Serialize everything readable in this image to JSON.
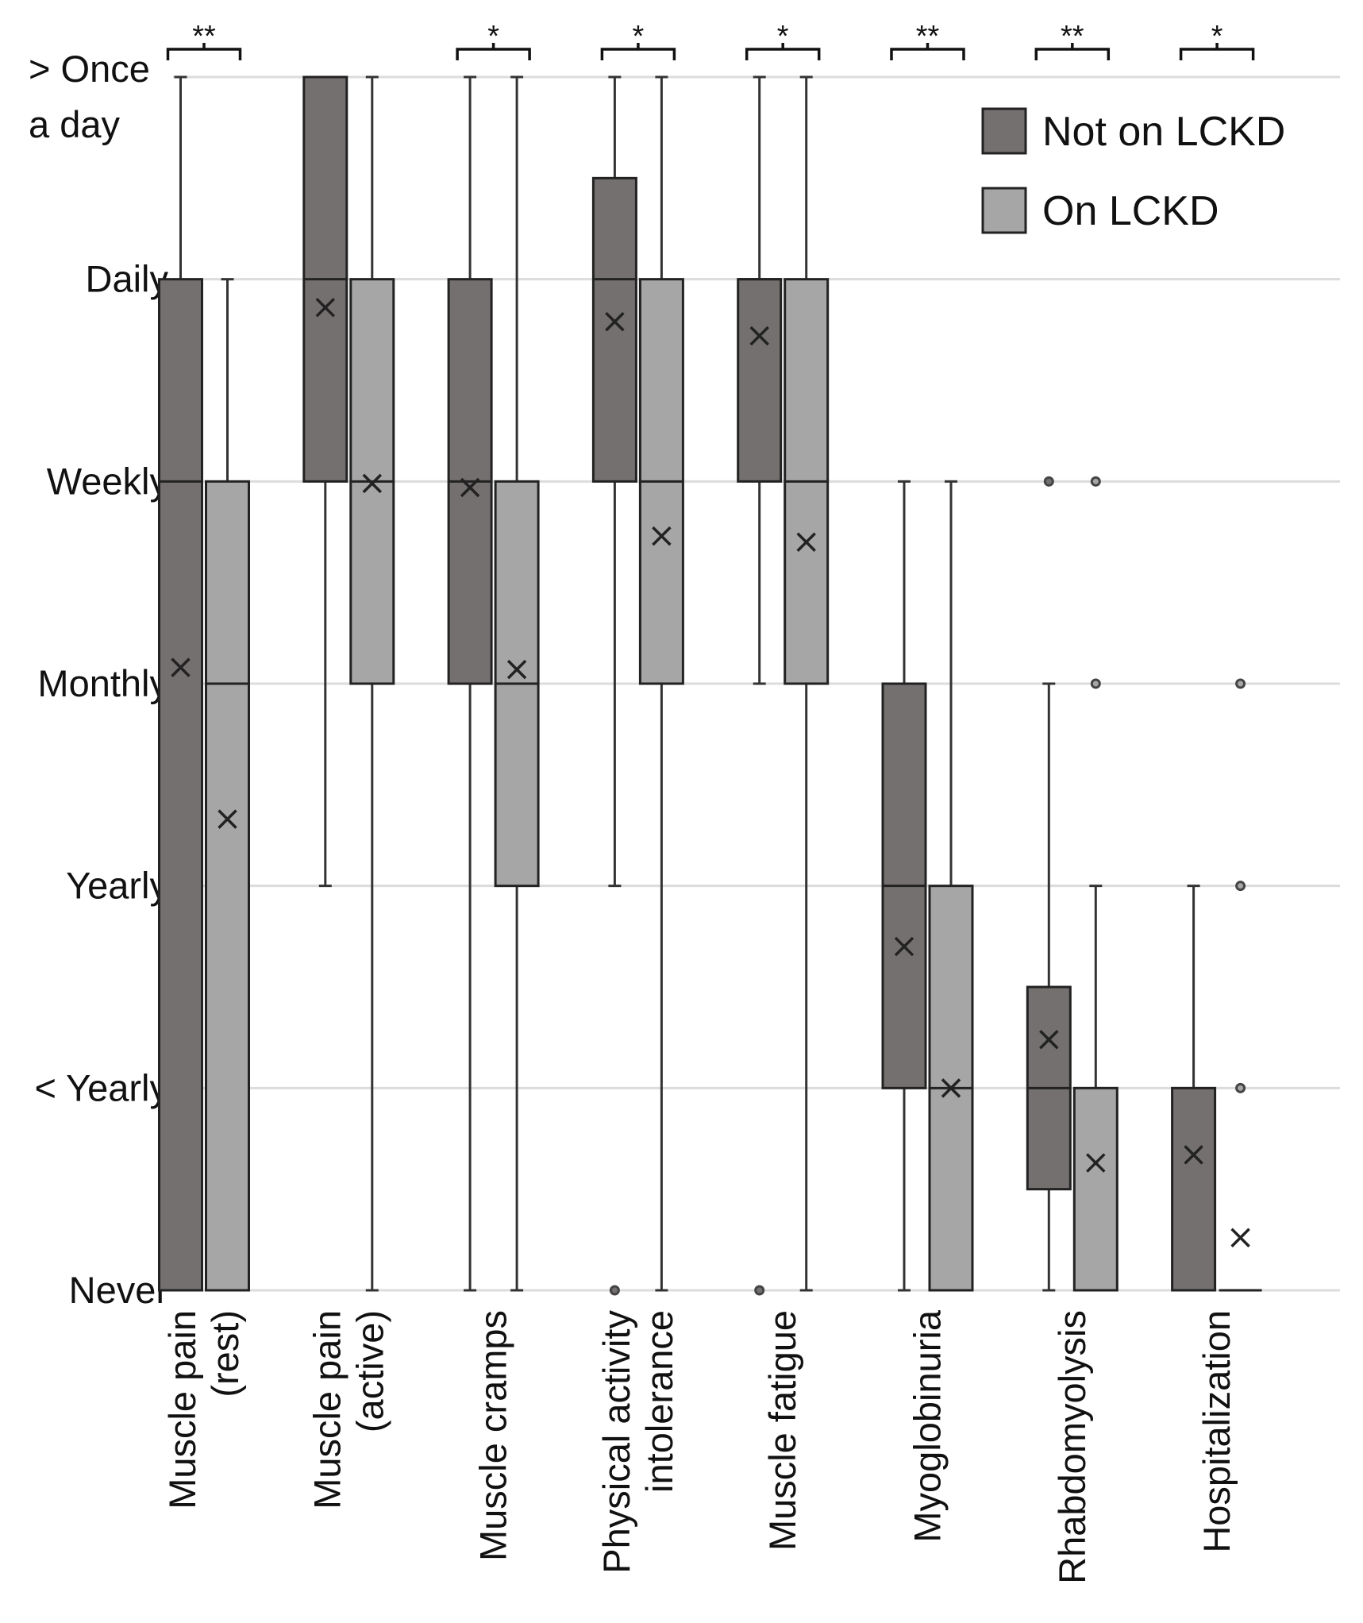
{
  "chart_data": {
    "type": "boxplot",
    "title": "",
    "xlabel": "",
    "ylabel": "",
    "y_levels": [
      "Never",
      "< Yearly",
      "Yearly",
      "Monthly",
      "Weekly",
      "Daily",
      "> Once a day"
    ],
    "y_tick_labels": [
      [
        "Never"
      ],
      [
        "< Yearly"
      ],
      [
        "Yearly"
      ],
      [
        "Monthly"
      ],
      [
        "Weekly"
      ],
      [
        "Daily"
      ],
      [
        "> Once",
        "a day"
      ]
    ],
    "ylim": [
      0,
      6
    ],
    "grid": true,
    "legend_position": "top-right",
    "series": [
      {
        "name": "Not on LCKD",
        "color": "#757070"
      },
      {
        "name": "On LCKD",
        "color": "#a6a6a6"
      }
    ],
    "groups": [
      {
        "category": "Muscle pain (rest)",
        "label_lines": [
          "Muscle pain",
          "(rest)"
        ],
        "significance": "**",
        "boxes": [
          {
            "min": 0,
            "q1": 0,
            "median": 4,
            "q3": 5,
            "max": 6,
            "mean": 3.08,
            "outliers": []
          },
          {
            "min": 0,
            "q1": 0,
            "median": 3,
            "q3": 4,
            "max": 5,
            "mean": 2.33,
            "outliers": []
          }
        ]
      },
      {
        "category": "Muscle pain (active)",
        "label_lines": [
          "Muscle pain",
          "(active)"
        ],
        "significance": "",
        "boxes": [
          {
            "min": 2,
            "q1": 4,
            "median": 5,
            "q3": 6,
            "max": 6,
            "mean": 4.86,
            "outliers": []
          },
          {
            "min": 0,
            "q1": 3,
            "median": 4,
            "q3": 5,
            "max": 6,
            "mean": 3.99,
            "outliers": []
          }
        ]
      },
      {
        "category": "Muscle cramps",
        "label_lines": [
          "Muscle cramps"
        ],
        "significance": "*",
        "boxes": [
          {
            "min": 0,
            "q1": 3,
            "median": 4,
            "q3": 5,
            "max": 6,
            "mean": 3.97,
            "outliers": []
          },
          {
            "min": 0,
            "q1": 2,
            "median": 3,
            "q3": 4,
            "max": 6,
            "mean": 3.07,
            "outliers": []
          }
        ]
      },
      {
        "category": "Physical activity intolerance",
        "label_lines": [
          "Physical activity",
          "intolerance"
        ],
        "significance": "*",
        "boxes": [
          {
            "min": 2,
            "q1": 4,
            "median": 5,
            "q3": 5.5,
            "max": 6,
            "mean": 4.79,
            "outliers": [
              0
            ]
          },
          {
            "min": 0,
            "q1": 3,
            "median": 4,
            "q3": 5,
            "max": 6,
            "mean": 3.73,
            "outliers": []
          }
        ]
      },
      {
        "category": "Muscle fatigue",
        "label_lines": [
          "Muscle fatigue"
        ],
        "significance": "*",
        "boxes": [
          {
            "min": 3,
            "q1": 4,
            "median": 5,
            "q3": 5,
            "max": 6,
            "mean": 4.72,
            "outliers": [
              0
            ]
          },
          {
            "min": 0,
            "q1": 3,
            "median": 4,
            "q3": 5,
            "max": 6,
            "mean": 3.7,
            "outliers": []
          }
        ]
      },
      {
        "category": "Myoglobinuria",
        "label_lines": [
          "Myoglobinuria"
        ],
        "significance": "**",
        "boxes": [
          {
            "min": 0,
            "q1": 1,
            "median": 2,
            "q3": 3,
            "max": 4,
            "mean": 1.7,
            "outliers": []
          },
          {
            "min": 0,
            "q1": 0,
            "median": 1,
            "q3": 2,
            "max": 4,
            "mean": 1.0,
            "outliers": []
          }
        ]
      },
      {
        "category": "Rhabdomyolysis",
        "label_lines": [
          "Rhabdomyolysis"
        ],
        "significance": "**",
        "boxes": [
          {
            "min": 0,
            "q1": 0.5,
            "median": 1,
            "q3": 1.5,
            "max": 3,
            "mean": 1.24,
            "outliers": [
              4
            ]
          },
          {
            "min": 0,
            "q1": 0,
            "median": 0,
            "q3": 1,
            "max": 2,
            "mean": 0.63,
            "outliers": [
              3,
              4
            ]
          }
        ]
      },
      {
        "category": "Hospitalization",
        "label_lines": [
          "Hospitalization"
        ],
        "significance": "*",
        "boxes": [
          {
            "min": 0,
            "q1": 0,
            "median": 0,
            "q3": 1,
            "max": 2,
            "mean": 0.67,
            "outliers": []
          },
          {
            "min": 0,
            "q1": 0,
            "median": 0,
            "q3": 0,
            "max": 0,
            "mean": 0.26,
            "outliers": [
              1,
              2,
              3
            ]
          }
        ]
      }
    ]
  }
}
